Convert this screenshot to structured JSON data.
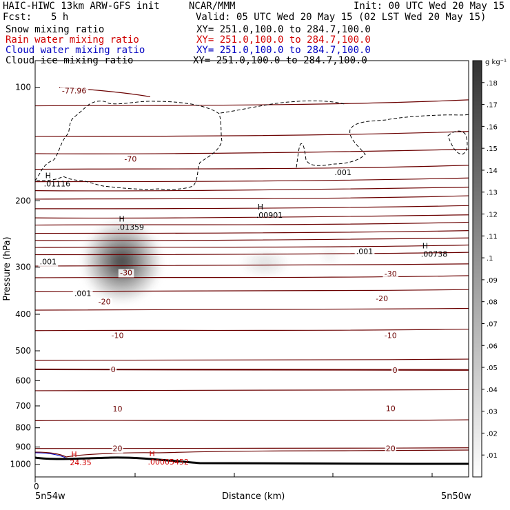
{
  "header": {
    "left_line1": "HAIC-HIWC 13km ARW-GFS init",
    "org": "NCAR/MMM",
    "init": "Init: 00 UTC Wed 20 May 15",
    "fcst_label": "Fcst:",
    "fcst_value": "5 h",
    "valid": "Valid: 05 UTC Wed 20 May 15 (02 LST Wed 20 May 15)"
  },
  "fields": [
    {
      "name": "Snow mixing ratio",
      "xy": "XY= 251.0,100.0 to 284.7,100.0",
      "color": "#000000"
    },
    {
      "name": "Rain water mixing ratio",
      "xy": "XY= 251.0,100.0 to 284.7,100.0",
      "color": "#d00000"
    },
    {
      "name": "Cloud water mixing ratio",
      "xy": "XY= 251.0,100.0 to 284.7,100.0",
      "color": "#0000c0"
    },
    {
      "name": "Cloud ice mixing ratio",
      "xy": "XY= 251.0,100.0 to 284.7,100.0",
      "color": "#000000"
    }
  ],
  "chart_data": {
    "type": "heatmap",
    "ylabel": "Pressure (hPa)",
    "xlabel": "Distance (km)",
    "x_left_label": "5n54w",
    "x_right_label": "5n50w",
    "x_zero_label": "0",
    "y_ticks": [
      "100",
      "200",
      "300",
      "400",
      "500",
      "600",
      "700",
      "800",
      "900",
      "1000"
    ],
    "y_tick_values": [
      100,
      200,
      300,
      400,
      500,
      600,
      700,
      800,
      900,
      1000
    ],
    "ylim": [
      1080,
      85
    ],
    "xlim": [
      0,
      100
    ],
    "colorbar": {
      "unit": "g kg⁻¹",
      "ticks": [
        ".18",
        ".17",
        ".16",
        ".15",
        ".14",
        ".13",
        ".12",
        ".11",
        ".1",
        ".09",
        ".08",
        ".07",
        ".06",
        ".05",
        ".04",
        ".03",
        ".02",
        ".01"
      ],
      "tick_values": [
        0.18,
        0.17,
        0.16,
        0.15,
        0.14,
        0.13,
        0.12,
        0.11,
        0.1,
        0.09,
        0.08,
        0.07,
        0.06,
        0.05,
        0.04,
        0.03,
        0.02,
        0.01
      ],
      "range": [
        0,
        0.19
      ]
    },
    "temperature_labels": [
      {
        "text": "-77.96",
        "x": 9,
        "p": 102
      },
      {
        "text": "-70",
        "x": 22,
        "p": 155
      },
      {
        "text": "-30",
        "x": 21,
        "p": 310
      },
      {
        "text": "-30",
        "x": 82,
        "p": 312
      },
      {
        "text": "-20",
        "x": 16,
        "p": 370
      },
      {
        "text": "-20",
        "x": 80,
        "p": 363
      },
      {
        "text": "-10",
        "x": 19,
        "p": 455
      },
      {
        "text": "-10",
        "x": 82,
        "p": 455
      },
      {
        "text": "0",
        "x": 18,
        "p": 560
      },
      {
        "text": "0",
        "x": 83,
        "p": 562
      },
      {
        "text": "10",
        "x": 19,
        "p": 712
      },
      {
        "text": "10",
        "x": 82,
        "p": 710
      },
      {
        "text": "20",
        "x": 19,
        "p": 907
      },
      {
        "text": "20",
        "x": 82,
        "p": 907
      }
    ],
    "mixing_ratio_labels": [
      {
        "text": ".001",
        "x": 71,
        "p": 168,
        "color": "#000000"
      },
      {
        "text": ".001",
        "x": 3,
        "p": 290,
        "color": "#000000"
      },
      {
        "text": ".001",
        "x": 11,
        "p": 352,
        "color": "#000000"
      },
      {
        "text": ".001",
        "x": 76,
        "p": 272,
        "color": "#000000"
      }
    ],
    "maxima": [
      {
        "mark": "H",
        "value": ".01116",
        "x": 2,
        "p": 180,
        "color": "#000000"
      },
      {
        "mark": "H",
        "value": ".01359",
        "x": 19,
        "p": 235,
        "color": "#000000"
      },
      {
        "mark": "H",
        "value": ".00901",
        "x": 51,
        "p": 218,
        "color": "#000000"
      },
      {
        "mark": "H",
        "value": ".00738",
        "x": 89,
        "p": 277,
        "color": "#000000"
      },
      {
        "mark": "H",
        "value": "24.35",
        "x": 8,
        "p": 988,
        "color": "#d00000"
      },
      {
        "mark": "H",
        "value": ".00005452",
        "x": 26,
        "p": 985,
        "color": "#d00000"
      }
    ],
    "shading_blobs": [
      {
        "x": 20,
        "p": 290,
        "sx": 8,
        "sp": 70,
        "peak": 0.17
      },
      {
        "x": 53,
        "p": 293,
        "sx": 5,
        "sp": 20,
        "peak": 0.03
      },
      {
        "x": 68,
        "p": 280,
        "sx": 2,
        "sp": 12,
        "peak": 0.015
      }
    ]
  }
}
